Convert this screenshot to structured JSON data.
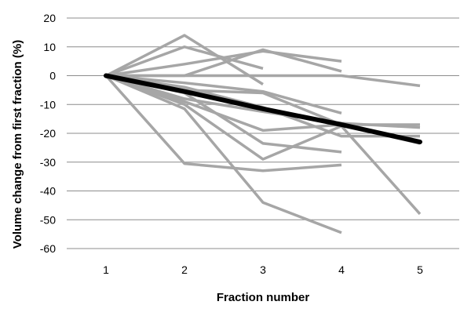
{
  "chart_data": {
    "type": "line",
    "xlabel": "Fraction number",
    "ylabel": "Volume change from first fraction (%)",
    "x": [
      1,
      2,
      3,
      4,
      5
    ],
    "ylim": [
      -60,
      20
    ],
    "yticks": [
      20,
      10,
      0,
      -10,
      -20,
      -30,
      -40,
      -50,
      -60
    ],
    "grid": "horizontal",
    "colors": {
      "patient": "#a6a6a6",
      "mean": "#000000",
      "grid": "#8c8c8c"
    },
    "patient_series": [
      {
        "values": [
          0,
          14,
          -3
        ]
      },
      {
        "values": [
          0,
          10,
          2.5
        ]
      },
      {
        "values": [
          0,
          4,
          8.5,
          5
        ]
      },
      {
        "values": [
          0,
          0,
          9,
          1.5
        ]
      },
      {
        "values": [
          0,
          0,
          0,
          0,
          -3.5
        ]
      },
      {
        "values": [
          0,
          -2.5,
          -5.5,
          -13
        ]
      },
      {
        "values": [
          0,
          -5,
          -6,
          -17,
          -23.5
        ]
      },
      {
        "values": [
          0,
          -8,
          -12.5,
          -16.5,
          -18
        ]
      },
      {
        "values": [
          0,
          -9,
          -19,
          -17,
          -17
        ]
      },
      {
        "values": [
          0,
          -10,
          -29,
          -17.5,
          -48
        ]
      },
      {
        "values": [
          0,
          -6,
          -23.5,
          -26.5
        ]
      },
      {
        "values": [
          0,
          -11.5,
          -44,
          -54.5
        ]
      },
      {
        "values": [
          0,
          -30.5,
          -33,
          -31
        ]
      },
      {
        "values": [
          0,
          -4,
          -11,
          -21,
          -21
        ]
      }
    ],
    "mean_series": {
      "values": [
        0,
        -5.5,
        -11.5,
        -17,
        -23
      ]
    }
  }
}
